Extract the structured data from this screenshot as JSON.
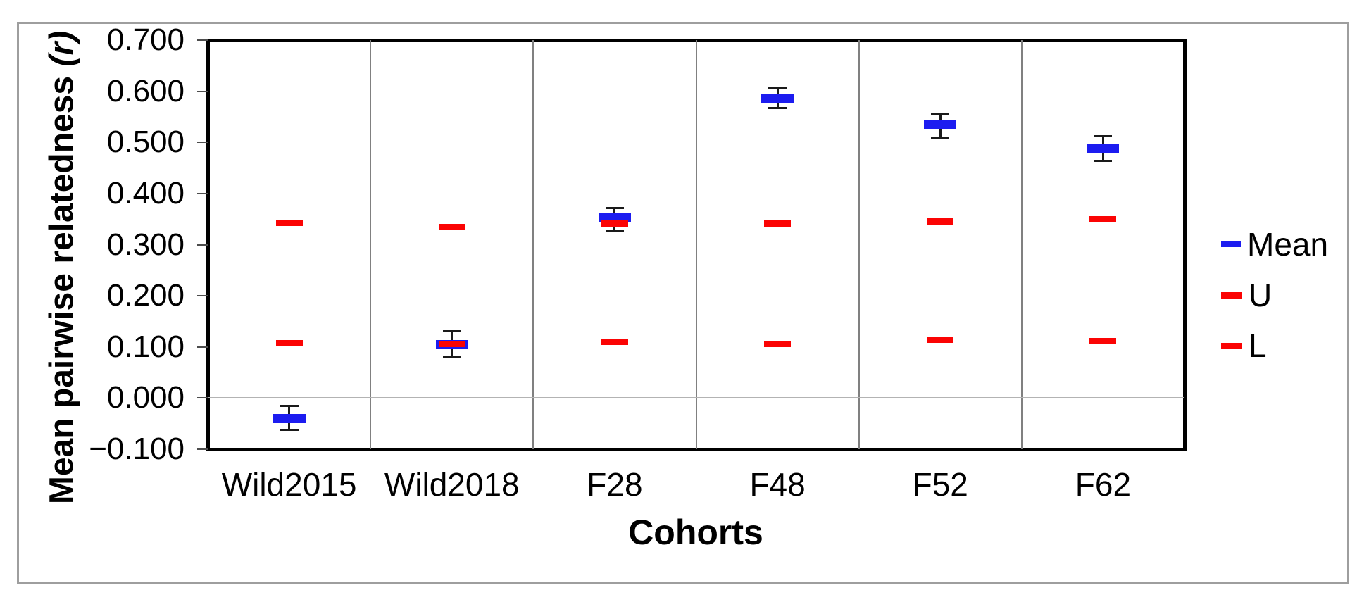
{
  "chart_data": {
    "type": "scatter",
    "title": "",
    "xlabel": "Cohorts",
    "ylabel": "Mean pairwise relatedness (r)",
    "ylabel_main": "Mean pairwise relatedness",
    "ylabel_italic": "(r)",
    "ylim": [
      -0.1,
      0.7
    ],
    "ytick_step": 0.1,
    "ytick_labels": [
      "0.700",
      "0.600",
      "0.500",
      "0.400",
      "0.300",
      "0.200",
      "0.100",
      "0.000",
      "−0.100"
    ],
    "categories": [
      "Wild2015",
      "Wild2018",
      "F28",
      "F48",
      "F52",
      "F62"
    ],
    "series": [
      {
        "name": "Mean",
        "marker": "thick-dash",
        "color": "#1c1cf0",
        "values": [
          -0.04,
          0.105,
          0.353,
          0.586,
          0.536,
          0.488
        ],
        "ci_low": [
          -0.063,
          0.08,
          0.327,
          0.566,
          0.509,
          0.463
        ],
        "ci_high": [
          -0.015,
          0.132,
          0.372,
          0.606,
          0.557,
          0.513
        ]
      },
      {
        "name": "U",
        "marker": "dash",
        "color": "#fb0404",
        "values": [
          0.342,
          0.335,
          0.341,
          0.341,
          0.345,
          0.349
        ]
      },
      {
        "name": "L",
        "marker": "dash",
        "color": "#fb0404",
        "values": [
          0.107,
          0.106,
          0.11,
          0.106,
          0.114,
          0.111
        ]
      }
    ],
    "legend": {
      "position": "right",
      "entries": [
        {
          "label": "Mean",
          "color": "#1c1cf0"
        },
        {
          "label": "U",
          "color": "#fb0404"
        },
        {
          "label": "L",
          "color": "#fb0404"
        }
      ]
    },
    "grid": {
      "vertical_dividers": true,
      "zero_line": true
    },
    "colors": {
      "plot_border": "#000000",
      "vertical_grid": "#808080",
      "zero_line": "#b3b3b3",
      "error_bar": "#1a1a1a",
      "outer_border": "#9e9e9e"
    }
  }
}
